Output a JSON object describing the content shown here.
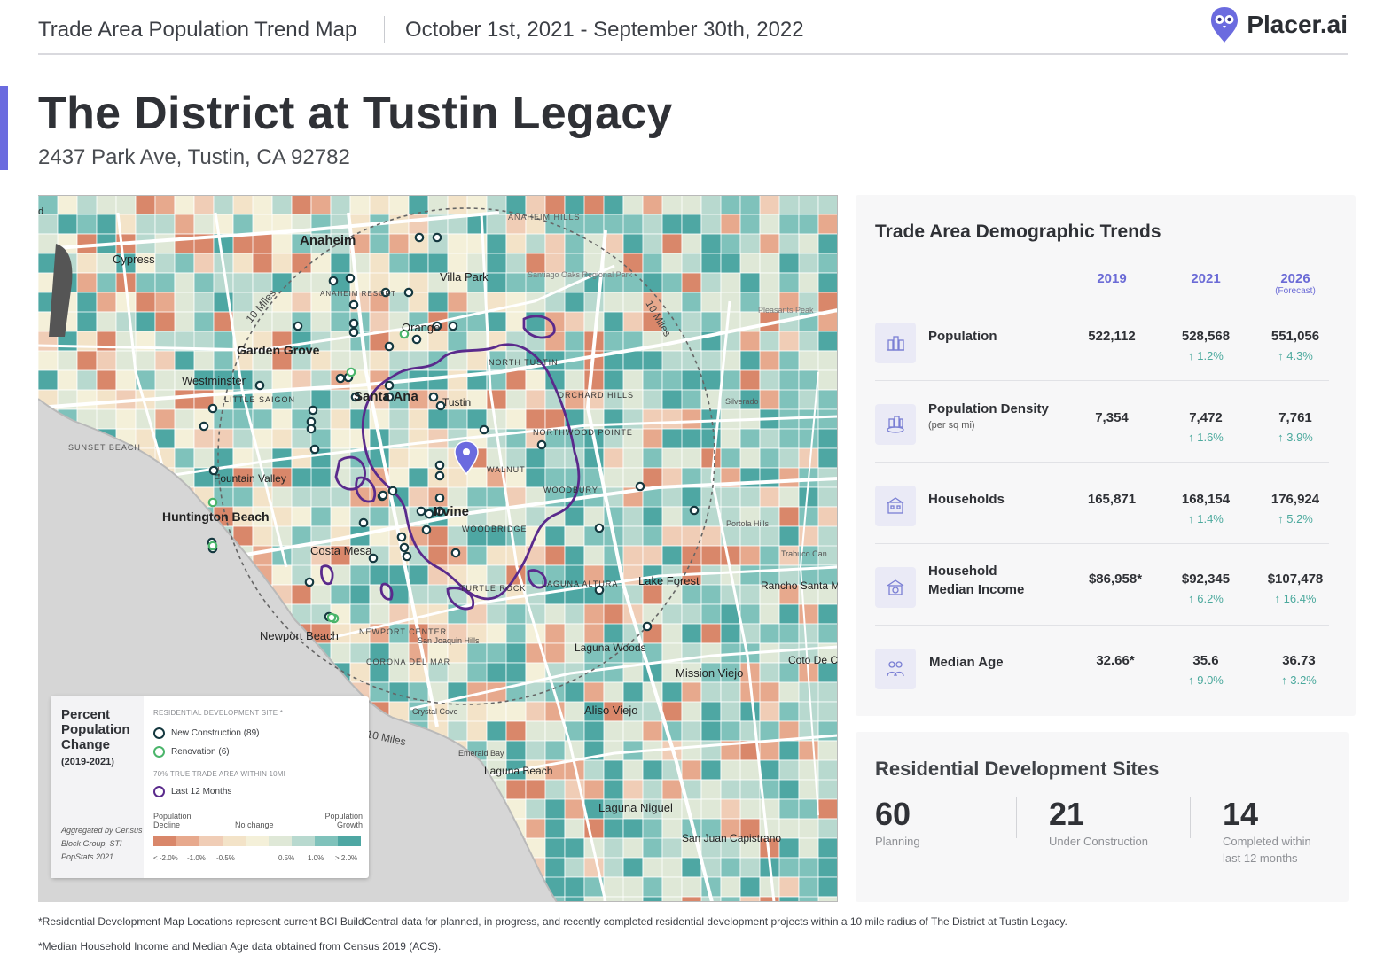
{
  "header": {
    "report_title": "Trade Area Population Trend Map",
    "date_range": "October 1st, 2021 - September 30th, 2022",
    "brand": "Placer.ai"
  },
  "property": {
    "name": "The District at Tustin Legacy",
    "address": "2437 Park Ave, Tustin, CA 92782"
  },
  "map": {
    "labels": {
      "anaheim": "Anaheim",
      "cypress": "Cypress",
      "villa_park": "Villa Park",
      "anaheim_hills": "ANAHEIM HILLS",
      "santiago_oaks": "Santiago Oaks Regional Park",
      "anaheim_resort": "ANAHEIM RESORT",
      "orange": "Orange",
      "pleasants_peak": "Pleasants Peak",
      "garden_grove": "Garden Grove",
      "north_tustin": "NORTH TUSTIN",
      "westminster": "Westminster",
      "santa_ana": "Santa Ana",
      "tustin": "Tustin",
      "little_saigon": "LITTLE SAIGON",
      "orchard_hills": "ORCHARD HILLS",
      "silverado": "Silverado",
      "sunset_beach": "SUNSET BEACH",
      "northwood_pointe": "NORTHWOOD POINTE",
      "walnut": "WALNUT",
      "fountain_valley": "Fountain Valley",
      "woodbury": "WOODBURY",
      "irvine": "Irvine",
      "huntington_beach": "Huntington Beach",
      "woodbridge": "WOODBRIDGE",
      "portola_hills": "Portola Hills",
      "trabuco": "Trabuco Can",
      "costa_mesa": "Costa Mesa",
      "lake_forest": "Lake Forest",
      "rancho_santa_margarita": "Rancho Santa Margarita",
      "turtle_rock": "TURTLE ROCK",
      "laguna_altura": "LAGUNA ALTURA",
      "newport_beach": "Newport Beach",
      "newport_center": "NEWPORT CENTER",
      "san_joaquin_hills": "San Joaquin Hills",
      "laguna_woods": "Laguna Woods",
      "coto_de_caza": "Coto De C",
      "corona_del_mar": "CORONA DEL MAR",
      "mission_viejo": "Mission Viejo",
      "aliso_viejo": "Aliso Viejo",
      "crystal_cove": "Crystal Cove",
      "emerald_bay": "Emerald Bay",
      "laguna_beach": "Laguna Beach",
      "laguna_niguel": "Laguna Niguel",
      "san_juan_capistrano": "San Juan Capistrano",
      "ring_label": "10 Miles",
      "d": "d"
    }
  },
  "legend": {
    "title": "Percent Population Change",
    "years": "(2019-2021)",
    "aggregation": "Aggregated by Census Block Group, STI PopStats 2021",
    "site_heading": "RESIDENTIAL DEVELOPMENT SITE *",
    "new_construction": "New Construction (89)",
    "renovation": "Renovation (6)",
    "trade_area_heading": "70% TRUE TRADE AREA WITHIN 10MI",
    "last_12_months": "Last 12 Months",
    "decline": "Population Decline",
    "no_change": "No change",
    "growth": "Population Growth",
    "ticks": [
      "< -2.0%",
      "-1.0%",
      "-0.5%",
      "0.5%",
      "1.0%",
      "> 2.0%"
    ],
    "ramp_colors": [
      "#d9876a",
      "#e7a98d",
      "#f0cdb6",
      "#f3e3c8",
      "#f4f0d9",
      "#dfe8d7",
      "#b8d9cf",
      "#7fc2bb",
      "#4ea7a3"
    ],
    "colors": {
      "new_construction": "#15383f",
      "renovation": "#4bb56b",
      "trade_area": "#5a2a8c",
      "pin": "#6b6bdf"
    }
  },
  "demographics": {
    "title": "Trade Area Demographic Trends",
    "years": [
      {
        "label": "2019",
        "sub": ""
      },
      {
        "label": "2021",
        "sub": ""
      },
      {
        "label": "2026",
        "sub": "(Forecast)"
      }
    ],
    "rows": [
      {
        "icon": "population-icon",
        "metric": "Population",
        "sub": "",
        "v2019": "522,112",
        "v2021": "528,568",
        "c2021": "1.2%",
        "v2026": "551,056",
        "c2026": "4.3%"
      },
      {
        "icon": "population-density-icon",
        "metric": "Population Density",
        "sub": "(per sq mi)",
        "v2019": "7,354",
        "v2021": "7,472",
        "c2021": "1.6%",
        "v2026": "7,761",
        "c2026": "3.9%"
      },
      {
        "icon": "households-icon",
        "metric": "Households",
        "sub": "",
        "v2019": "165,871",
        "v2021": "168,154",
        "c2021": "1.4%",
        "v2026": "176,924",
        "c2026": "5.2%"
      },
      {
        "icon": "household-income-icon",
        "metric": "Household",
        "metric2": "Median Income",
        "sub": "",
        "v2019": "$86,958*",
        "v2021": "$92,345",
        "c2021": "6.2%",
        "v2026": "$107,478",
        "c2026": "16.4%"
      },
      {
        "icon": "median-age-icon",
        "metric": "Median Age",
        "sub": "",
        "v2019": "32.66*",
        "v2021": "35.6",
        "c2021": "9.0%",
        "v2026": "36.73",
        "c2026": "3.2%"
      }
    ],
    "up_arrow": "↑"
  },
  "residential": {
    "title": "Residential Development Sites",
    "stats": [
      {
        "value": "60",
        "label": "Planning",
        "label2": ""
      },
      {
        "value": "21",
        "label": "Under Construction",
        "label2": ""
      },
      {
        "value": "14",
        "label": "Completed within",
        "label2": "last 12 months"
      }
    ]
  },
  "footnotes": [
    "*Residential Development Map Locations represent current BCI BuildCentral data for planned, in progress, and recently completed residential development projects within a 10 mile radius of The District at Tustin Legacy.",
    "*Median Household Income and Median Age data obtained from Census 2019 (ACS)."
  ]
}
